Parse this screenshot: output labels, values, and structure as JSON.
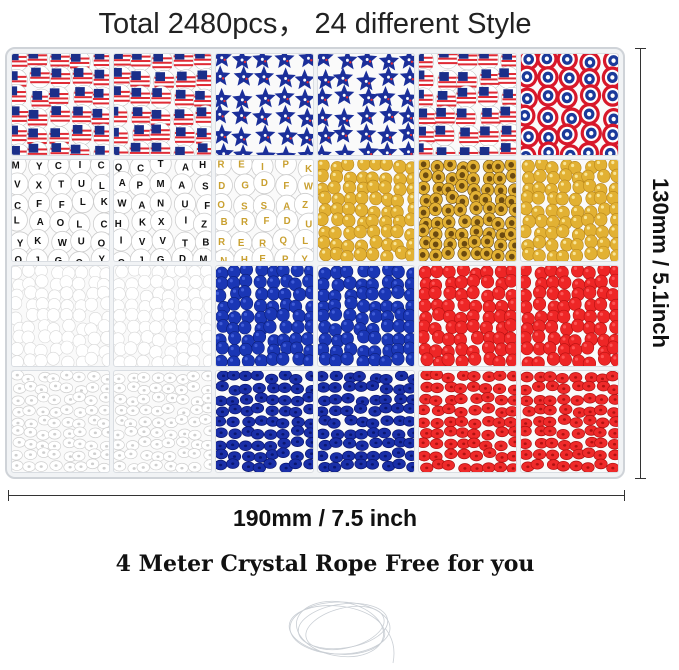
{
  "title": "Total 2480pcs， 24 different Style",
  "height_label": "130mm / 5.1inch",
  "width_label": "190mm / 7.5 inch",
  "rope_text": "4 Meter Crystal Rope Free for you",
  "cells": [
    {
      "kind": "flag",
      "colors": [
        "#e02b35",
        "#ffffff",
        "#1b2f8a"
      ]
    },
    {
      "kind": "flag",
      "colors": [
        "#e02b35",
        "#ffffff",
        "#1b2f8a"
      ]
    },
    {
      "kind": "star",
      "colors": [
        "#1b2f9a",
        "#ffffff",
        "#e02b35"
      ]
    },
    {
      "kind": "star",
      "colors": [
        "#1b2f9a",
        "#ffffff",
        "#e02b35"
      ]
    },
    {
      "kind": "flag",
      "colors": [
        "#e02b35",
        "#ffffff",
        "#1b2f8a"
      ]
    },
    {
      "kind": "shield",
      "colors": [
        "#d8182a",
        "#ffffff",
        "#1b3a9a"
      ]
    },
    {
      "kind": "letter",
      "colors": [
        "#ffffff",
        "#111111",
        "#cccccc"
      ]
    },
    {
      "kind": "letter",
      "colors": [
        "#ffffff",
        "#111111",
        "#cccccc"
      ]
    },
    {
      "kind": "letter",
      "colors": [
        "#ffffff",
        "#c9a030",
        "#cccccc"
      ]
    },
    {
      "kind": "round",
      "colors": [
        "#e2b133",
        "#b8861a",
        "#fff2b0"
      ]
    },
    {
      "kind": "ring",
      "colors": [
        "#e2b133",
        "#6b4a10",
        "#fff2b0"
      ]
    },
    {
      "kind": "round",
      "colors": [
        "#e2b133",
        "#b8861a",
        "#fff2b0"
      ]
    },
    {
      "kind": "round",
      "colors": [
        "#ffffff",
        "#d7d7d7",
        "#ffffff"
      ]
    },
    {
      "kind": "round",
      "colors": [
        "#ffffff",
        "#d7d7d7",
        "#ffffff"
      ]
    },
    {
      "kind": "round",
      "colors": [
        "#1a36b5",
        "#0c1f7a",
        "#4a66e0"
      ]
    },
    {
      "kind": "round",
      "colors": [
        "#1a36b5",
        "#0c1f7a",
        "#4a66e0"
      ]
    },
    {
      "kind": "round",
      "colors": [
        "#ee2626",
        "#b51010",
        "#ff6060"
      ]
    },
    {
      "kind": "round",
      "colors": [
        "#ee2626",
        "#b51010",
        "#ff6060"
      ]
    },
    {
      "kind": "disc",
      "colors": [
        "#ffffff",
        "#cfcfcf",
        "#eeeeee"
      ]
    },
    {
      "kind": "disc",
      "colors": [
        "#ffffff",
        "#cfcfcf",
        "#eeeeee"
      ]
    },
    {
      "kind": "disc",
      "colors": [
        "#1a2fa8",
        "#0a1670",
        "#3a52d0"
      ]
    },
    {
      "kind": "disc",
      "colors": [
        "#1a2fa8",
        "#0a1670",
        "#3a52d0"
      ]
    },
    {
      "kind": "disc",
      "colors": [
        "#ef2a2a",
        "#b01212",
        "#ff5a5a"
      ]
    },
    {
      "kind": "disc",
      "colors": [
        "#ef2a2a",
        "#b01212",
        "#ff5a5a"
      ]
    }
  ]
}
